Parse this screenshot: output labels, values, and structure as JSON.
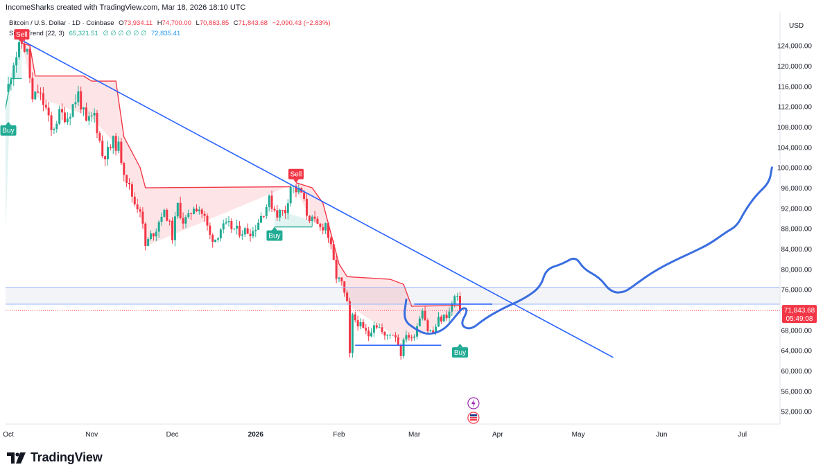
{
  "header": {
    "attribution": "IncomeSharks created with TradingView.com, Mar 18, 2026 18:10 UTC"
  },
  "legend": {
    "symbol": "Bitcoin / U.S. Dollar · 1D · Coinbase",
    "open_key": "O",
    "open": "73,934.11",
    "high_key": "H",
    "high": "74,700.00",
    "low_key": "L",
    "low": "70,863.85",
    "close_key": "C",
    "close": "71,843.68",
    "change": "−2,090.43 (−2.83%)",
    "indicator": "SuperTrend (22, 3)",
    "indicator_up": "65,321.51",
    "indicator_zeros": "∅ ∅ ∅ ∅ ∅ ∅",
    "indicator_down": "72,835.41"
  },
  "brand": {
    "name": "TradingView"
  },
  "colors": {
    "up": "#22ab94",
    "down": "#f23645",
    "trendline": "#2962ff",
    "projection": "#3a6ee0",
    "supertrend_down": "#f23645",
    "supertrend_up": "#22ab94",
    "price_tag": "#f23645",
    "axis_text": "#131722"
  },
  "chart_data": {
    "type": "candlestick",
    "symbol": "Bitcoin / U.S. Dollar",
    "interval": "1D",
    "exchange": "Coinbase",
    "currency_label": "USD",
    "y_axis": {
      "range": [
        49500,
        128600
      ],
      "ticks": [
        "52,000.00",
        "56,000.00",
        "60,000.00",
        "64,000.00",
        "68,000.00",
        "72,000.00",
        "76,000.00",
        "80,000.00",
        "84,000.00",
        "88,000.00",
        "92,000.00",
        "96,000.00",
        "100,000.00",
        "104,000.00",
        "108,000.00",
        "112,000.00",
        "116,000.00",
        "120,000.00",
        "124,000.00"
      ]
    },
    "x_axis": {
      "ticks": [
        {
          "date": "2025-10-01",
          "label": "Oct",
          "bold": false
        },
        {
          "date": "2025-11-01",
          "label": "Nov",
          "bold": false
        },
        {
          "date": "2025-12-01",
          "label": "Dec",
          "bold": false
        },
        {
          "date": "2026-01-01",
          "label": "2026",
          "bold": true
        },
        {
          "date": "2026-02-01",
          "label": "Feb",
          "bold": false
        },
        {
          "date": "2026-03-01",
          "label": "Mar",
          "bold": false
        },
        {
          "date": "2026-04-01",
          "label": "Apr",
          "bold": false
        },
        {
          "date": "2026-05-01",
          "label": "May",
          "bold": false
        },
        {
          "date": "2026-06-01",
          "label": "Jun",
          "bold": false
        },
        {
          "date": "2026-07-01",
          "label": "Jul",
          "bold": false
        }
      ]
    },
    "last_price": {
      "value": "71,843.68",
      "countdown": "05:49:08"
    },
    "close_path": [
      [
        "2025-10-01",
        116000
      ],
      [
        "2025-10-03",
        121000
      ],
      [
        "2025-10-06",
        124500
      ],
      [
        "2025-10-08",
        122500
      ],
      [
        "2025-10-10",
        113000
      ],
      [
        "2025-10-12",
        115000
      ],
      [
        "2025-10-15",
        111500
      ],
      [
        "2025-10-17",
        107000
      ],
      [
        "2025-10-20",
        110500
      ],
      [
        "2025-10-23",
        110000
      ],
      [
        "2025-10-27",
        114500
      ],
      [
        "2025-10-30",
        108500
      ],
      [
        "2025-11-02",
        110500
      ],
      [
        "2025-11-05",
        102500
      ],
      [
        "2025-11-07",
        103000
      ],
      [
        "2025-11-09",
        105000
      ],
      [
        "2025-11-11",
        104000
      ],
      [
        "2025-11-13",
        99500
      ],
      [
        "2025-11-15",
        96000
      ],
      [
        "2025-11-17",
        93000
      ],
      [
        "2025-11-19",
        92000
      ],
      [
        "2025-11-21",
        84500
      ],
      [
        "2025-11-23",
        86500
      ],
      [
        "2025-11-25",
        88000
      ],
      [
        "2025-11-27",
        91000
      ],
      [
        "2025-11-29",
        90500
      ],
      [
        "2025-12-01",
        86500
      ],
      [
        "2025-12-03",
        92500
      ],
      [
        "2025-12-05",
        89500
      ],
      [
        "2025-12-07",
        90000
      ],
      [
        "2025-12-09",
        92500
      ],
      [
        "2025-12-11",
        92000
      ],
      [
        "2025-12-13",
        90000
      ],
      [
        "2025-12-15",
        86500
      ],
      [
        "2025-12-17",
        86000
      ],
      [
        "2025-12-19",
        88000
      ],
      [
        "2025-12-22",
        88500
      ],
      [
        "2025-12-25",
        87500
      ],
      [
        "2025-12-28",
        87500
      ],
      [
        "2025-12-31",
        87500
      ],
      [
        "2026-01-03",
        90500
      ],
      [
        "2026-01-06",
        93500
      ],
      [
        "2026-01-09",
        91000
      ],
      [
        "2026-01-12",
        91500
      ],
      [
        "2026-01-14",
        96500
      ],
      [
        "2026-01-16",
        95500
      ],
      [
        "2026-01-18",
        95000
      ],
      [
        "2026-01-20",
        91000
      ],
      [
        "2026-01-22",
        89500
      ],
      [
        "2026-01-25",
        88000
      ],
      [
        "2026-01-27",
        89000
      ],
      [
        "2026-01-29",
        84000
      ],
      [
        "2026-01-31",
        78500
      ],
      [
        "2026-02-02",
        77000
      ],
      [
        "2026-02-04",
        73000
      ],
      [
        "2026-02-05",
        63000
      ],
      [
        "2026-02-06",
        70500
      ],
      [
        "2026-02-08",
        69500
      ],
      [
        "2026-02-10",
        68000
      ],
      [
        "2026-02-12",
        67000
      ],
      [
        "2026-02-14",
        69500
      ],
      [
        "2026-02-16",
        68500
      ],
      [
        "2026-02-18",
        66500
      ],
      [
        "2026-02-20",
        67500
      ],
      [
        "2026-02-22",
        67000
      ],
      [
        "2026-02-24",
        63500
      ],
      [
        "2026-02-26",
        67500
      ],
      [
        "2026-02-28",
        66000
      ],
      [
        "2026-03-02",
        69000
      ],
      [
        "2026-03-04",
        72500
      ],
      [
        "2026-03-06",
        68000
      ],
      [
        "2026-03-08",
        67500
      ],
      [
        "2026-03-10",
        70000
      ],
      [
        "2026-03-12",
        70500
      ],
      [
        "2026-03-14",
        71500
      ],
      [
        "2026-03-16",
        74500
      ],
      [
        "2026-03-17",
        73900
      ],
      [
        "2026-03-18",
        71843.68
      ]
    ],
    "supertrend": {
      "settings": "SuperTrend (22, 3)",
      "down_segments": [
        [
          [
            "2025-10-06",
            124500
          ],
          [
            "2025-10-09",
            124000
          ],
          [
            "2025-10-11",
            118000
          ],
          [
            "2025-10-29",
            118000
          ],
          [
            "2025-11-01",
            117000
          ],
          [
            "2025-11-10",
            117000
          ],
          [
            "2025-11-13",
            106000
          ],
          [
            "2025-11-19",
            100000
          ],
          [
            "2025-11-21",
            96000
          ],
          [
            "2026-01-14",
            96200
          ]
        ],
        [
          [
            "2026-01-16",
            97000
          ],
          [
            "2026-01-22",
            96000
          ],
          [
            "2026-01-26",
            93000
          ],
          [
            "2026-01-29",
            87000
          ],
          [
            "2026-02-01",
            81000
          ],
          [
            "2026-02-04",
            78500
          ],
          [
            "2026-02-20",
            78000
          ],
          [
            "2026-02-25",
            77000
          ],
          [
            "2026-02-28",
            72700
          ],
          [
            "2026-03-18",
            72835.41
          ]
        ]
      ],
      "up_segments": [
        [
          [
            "2025-09-29",
            109000
          ],
          [
            "2025-10-02",
            117500
          ],
          [
            "2025-10-06",
            117500
          ]
        ],
        [
          [
            "2026-01-08",
            88300
          ],
          [
            "2026-01-22",
            88300
          ]
        ],
        [
          [
            "2026-03-18",
            65321.51
          ]
        ]
      ],
      "signals": [
        {
          "label": "Buy",
          "date": "2025-10-01",
          "price": 109000,
          "side": "buy"
        },
        {
          "label": "Sell",
          "date": "2025-10-06",
          "price": 124500,
          "side": "sell"
        },
        {
          "label": "Buy",
          "date": "2026-01-08",
          "price": 88300,
          "side": "buy"
        },
        {
          "label": "Sell",
          "date": "2026-01-16",
          "price": 97000,
          "side": "sell"
        },
        {
          "label": "Buy",
          "date": "2026-03-18",
          "price": 65300,
          "side": "buy"
        }
      ]
    },
    "drawings": {
      "trendline": {
        "from": [
          "2025-10-04",
          125600
        ],
        "to": [
          "2026-05-14",
          62600
        ]
      },
      "horizontal_lines": [
        76400,
        73100
      ],
      "range_box": {
        "from_date": "2026-02-05",
        "to_date": "2026-04-01",
        "top": 76400,
        "bottom": 73100
      },
      "support_line": {
        "from": [
          "2026-02-07",
          65000
        ],
        "to": [
          "2026-03-11",
          65000
        ]
      },
      "resistance_line": {
        "from": [
          "2026-03-01",
          73100
        ],
        "to": [
          "2026-03-30",
          73100
        ]
      },
      "projection_path": [
        [
          "2026-02-26",
          74000
        ],
        [
          "2026-02-25",
          70000
        ],
        [
          "2026-03-01",
          68300
        ],
        [
          "2026-03-06",
          67000
        ],
        [
          "2026-03-12",
          68000
        ],
        [
          "2026-03-16",
          70500
        ],
        [
          "2026-03-19",
          72500
        ],
        [
          "2026-03-21",
          72000
        ],
        [
          "2026-03-18",
          69000
        ],
        [
          "2026-03-22",
          68000
        ],
        [
          "2026-03-27",
          70200
        ],
        [
          "2026-04-03",
          72300
        ],
        [
          "2026-04-11",
          74200
        ],
        [
          "2026-04-17",
          76500
        ],
        [
          "2026-04-19",
          80000
        ],
        [
          "2026-04-25",
          81000
        ],
        [
          "2026-04-30",
          82500
        ],
        [
          "2026-05-03",
          80000
        ],
        [
          "2026-05-09",
          78300
        ],
        [
          "2026-05-13",
          75500
        ],
        [
          "2026-05-18",
          75300
        ],
        [
          "2026-05-23",
          77300
        ],
        [
          "2026-05-29",
          79500
        ],
        [
          "2026-06-05",
          81500
        ],
        [
          "2026-06-12",
          83200
        ],
        [
          "2026-06-19",
          85000
        ],
        [
          "2026-06-25",
          87300
        ],
        [
          "2026-06-29",
          88500
        ],
        [
          "2026-07-02",
          91500
        ],
        [
          "2026-07-06",
          94500
        ],
        [
          "2026-07-11",
          97000
        ],
        [
          "2026-07-12",
          100000
        ]
      ]
    }
  }
}
